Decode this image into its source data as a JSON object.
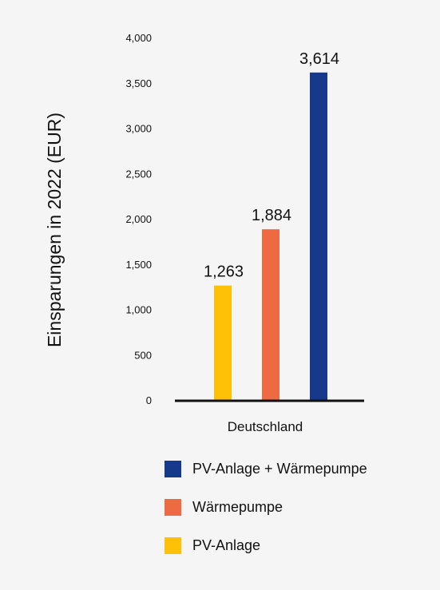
{
  "chart_data": {
    "type": "bar",
    "title": "",
    "xlabel": "",
    "ylabel": "Einsparungen in 2022 (EUR)",
    "categories": [
      "Deutschland"
    ],
    "ylim": [
      0,
      4000
    ],
    "yticks": [
      0,
      500,
      1000,
      1500,
      2000,
      2500,
      3000,
      3500,
      4000
    ],
    "ytick_labels": [
      "0",
      "500",
      "1,000",
      "1,500",
      "2,000",
      "2,500",
      "3,000",
      "3,500",
      "4,000"
    ],
    "grid": false,
    "legend_position": "bottom",
    "series": [
      {
        "name": "PV-Anlage",
        "values": [
          1263
        ],
        "label": "1,263",
        "color": "#ffc107"
      },
      {
        "name": "Wärmepumpe",
        "values": [
          1884
        ],
        "label": "1,884",
        "color": "#ed6a43"
      },
      {
        "name": "PV-Anlage + Wärmepumpe",
        "values": [
          3614
        ],
        "label": "3,614",
        "color": "#17398c"
      }
    ],
    "legend_order": [
      "PV-Anlage + Wärmepumpe",
      "Wärmepumpe",
      "PV-Anlage"
    ]
  }
}
